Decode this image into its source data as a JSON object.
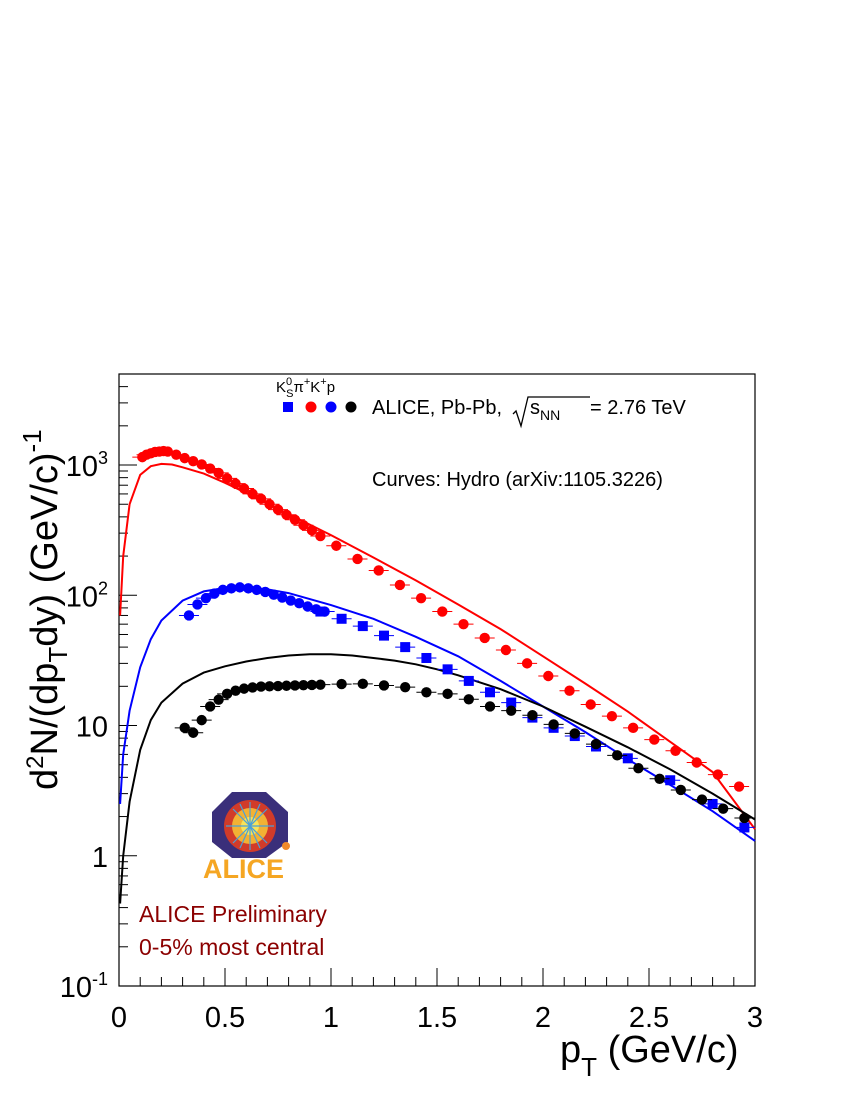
{
  "chart_data": {
    "type": "scatter",
    "xlabel_main": "p",
    "xlabel_sub": "T",
    "xlabel_unit": " (GeV/c)",
    "ylabel": {
      "d": "d",
      "sup2": "2",
      "n_open": "N/(dp",
      "sub_t": "T",
      "dy": "dy)  (GeV/c)",
      "sup_exp": "-1"
    },
    "xlim": [
      0,
      3
    ],
    "ylim": [
      0.1,
      5000
    ],
    "yscale": "log",
    "x_ticks": [
      {
        "value": 0,
        "label": "0"
      },
      {
        "value": 0.5,
        "label": "0.5"
      },
      {
        "value": 1,
        "label": "1"
      },
      {
        "value": 1.5,
        "label": "1.5"
      },
      {
        "value": 2,
        "label": "2"
      },
      {
        "value": 2.5,
        "label": "2.5"
      },
      {
        "value": 3,
        "label": "3"
      }
    ],
    "y_ticks": [
      {
        "value": 0.1,
        "base": "10",
        "exp": "-1"
      },
      {
        "value": 1,
        "base": "1",
        "exp": ""
      },
      {
        "value": 10,
        "base": "10",
        "exp": ""
      },
      {
        "value": 100,
        "base": "10",
        "exp": "2"
      },
      {
        "value": 1000,
        "base": "10",
        "exp": "3"
      }
    ],
    "legend": {
      "species_k": "K",
      "species_k_sup": "0",
      "species_k_sub": "S",
      "species_pi": "π",
      "species_pi_sup": "+",
      "species_kp": "K",
      "species_kp_sup": "+",
      "species_p": "p",
      "label_main": "ALICE, Pb-Pb,",
      "label_s": "s",
      "label_nn": "NN",
      "label_energy": " = 2.76 TeV"
    },
    "curves_note": "Curves: Hydro (arXiv:1105.3226)",
    "preliminary_line1": "ALICE Preliminary",
    "preliminary_line2": "0-5% most central",
    "logo_text": "ALICE",
    "series": [
      {
        "color": "#ff0000",
        "marker": "circle",
        "points": [
          [
            0.11,
            1150
          ],
          [
            0.13,
            1200
          ],
          [
            0.15,
            1230
          ],
          [
            0.17,
            1260
          ],
          [
            0.19,
            1270
          ],
          [
            0.21,
            1280
          ],
          [
            0.23,
            1270
          ],
          [
            0.27,
            1200
          ],
          [
            0.31,
            1130
          ],
          [
            0.35,
            1070
          ],
          [
            0.39,
            1010
          ],
          [
            0.43,
            940
          ],
          [
            0.47,
            870
          ],
          [
            0.51,
            790
          ],
          [
            0.55,
            720
          ],
          [
            0.59,
            660
          ],
          [
            0.63,
            600
          ],
          [
            0.67,
            550
          ],
          [
            0.71,
            500
          ],
          [
            0.75,
            455
          ],
          [
            0.79,
            415
          ],
          [
            0.83,
            380
          ],
          [
            0.87,
            345
          ],
          [
            0.91,
            315
          ],
          [
            0.95,
            285
          ],
          [
            1.025,
            240
          ],
          [
            1.125,
            190
          ],
          [
            1.225,
            155
          ],
          [
            1.325,
            120
          ],
          [
            1.425,
            95
          ],
          [
            1.525,
            75
          ],
          [
            1.625,
            60
          ],
          [
            1.725,
            47
          ],
          [
            1.825,
            38
          ],
          [
            1.925,
            30
          ],
          [
            2.025,
            24
          ],
          [
            2.125,
            18.5
          ],
          [
            2.225,
            14.5
          ],
          [
            2.325,
            11.8
          ],
          [
            2.425,
            9.6
          ],
          [
            2.525,
            7.8
          ],
          [
            2.625,
            6.4
          ],
          [
            2.725,
            5.2
          ],
          [
            2.825,
            4.2
          ],
          [
            2.925,
            3.4
          ]
        ]
      },
      {
        "color": "#0000ff",
        "marker": "circle",
        "points": [
          [
            0.33,
            70
          ],
          [
            0.37,
            85
          ],
          [
            0.41,
            95
          ],
          [
            0.45,
            103
          ],
          [
            0.49,
            110
          ],
          [
            0.53,
            113
          ],
          [
            0.57,
            115
          ],
          [
            0.61,
            113
          ],
          [
            0.65,
            110
          ],
          [
            0.69,
            106
          ],
          [
            0.73,
            101
          ],
          [
            0.77,
            96
          ],
          [
            0.81,
            91
          ],
          [
            0.85,
            87
          ],
          [
            0.89,
            82
          ],
          [
            0.93,
            78
          ],
          [
            0.97,
            75
          ]
        ]
      },
      {
        "color": "#0000ff",
        "marker": "square",
        "points": [
          [
            0.95,
            75
          ],
          [
            1.05,
            66
          ],
          [
            1.15,
            58
          ],
          [
            1.25,
            49
          ],
          [
            1.35,
            40
          ],
          [
            1.45,
            33
          ],
          [
            1.55,
            27
          ],
          [
            1.65,
            22
          ],
          [
            1.75,
            18
          ],
          [
            1.85,
            15
          ],
          [
            1.95,
            11.5
          ],
          [
            2.05,
            9.6
          ],
          [
            2.15,
            8.3
          ],
          [
            2.25,
            6.9
          ],
          [
            2.4,
            5.6
          ],
          [
            2.6,
            3.8
          ],
          [
            2.8,
            2.5
          ],
          [
            2.95,
            1.65
          ]
        ]
      },
      {
        "color": "#000000",
        "marker": "circle",
        "points": [
          [
            0.31,
            9.6
          ],
          [
            0.35,
            8.8
          ],
          [
            0.39,
            11.0
          ],
          [
            0.43,
            14.0
          ],
          [
            0.47,
            15.8
          ],
          [
            0.51,
            17.5
          ],
          [
            0.55,
            18.5
          ],
          [
            0.59,
            19.2
          ],
          [
            0.63,
            19.6
          ],
          [
            0.67,
            19.9
          ],
          [
            0.71,
            20.0
          ],
          [
            0.75,
            20.1
          ],
          [
            0.79,
            20.2
          ],
          [
            0.83,
            20.3
          ],
          [
            0.87,
            20.4
          ],
          [
            0.91,
            20.5
          ],
          [
            0.95,
            20.6
          ],
          [
            1.05,
            20.8
          ],
          [
            1.15,
            20.9
          ],
          [
            1.25,
            20.3
          ],
          [
            1.35,
            19.7
          ],
          [
            1.45,
            18.0
          ],
          [
            1.55,
            17.5
          ],
          [
            1.65,
            15.9
          ],
          [
            1.75,
            14.0
          ],
          [
            1.85,
            13.0
          ],
          [
            1.95,
            12.0
          ],
          [
            2.05,
            10.2
          ],
          [
            2.15,
            8.7
          ],
          [
            2.25,
            7.2
          ],
          [
            2.35,
            5.9
          ],
          [
            2.45,
            4.7
          ],
          [
            2.55,
            3.9
          ],
          [
            2.65,
            3.2
          ],
          [
            2.75,
            2.7
          ],
          [
            2.85,
            2.3
          ],
          [
            2.95,
            1.95
          ]
        ]
      }
    ],
    "hydro_curves": [
      {
        "color": "#ff0000",
        "points": [
          [
            0.005,
            70
          ],
          [
            0.02,
            200
          ],
          [
            0.05,
            500
          ],
          [
            0.1,
            840
          ],
          [
            0.15,
            980
          ],
          [
            0.2,
            1020
          ],
          [
            0.25,
            1010
          ],
          [
            0.3,
            960
          ],
          [
            0.4,
            860
          ],
          [
            0.5,
            730
          ],
          [
            0.6,
            610
          ],
          [
            0.8,
            420
          ],
          [
            1.0,
            290
          ],
          [
            1.2,
            195
          ],
          [
            1.4,
            130
          ],
          [
            1.6,
            85
          ],
          [
            1.8,
            55
          ],
          [
            2.0,
            34
          ],
          [
            2.2,
            21
          ],
          [
            2.4,
            12.8
          ],
          [
            2.6,
            7.5
          ],
          [
            2.8,
            4.4
          ],
          [
            3.0,
            1.6
          ]
        ]
      },
      {
        "color": "#0000ff",
        "points": [
          [
            0.005,
            2.5
          ],
          [
            0.02,
            6
          ],
          [
            0.05,
            13
          ],
          [
            0.1,
            28
          ],
          [
            0.15,
            46
          ],
          [
            0.2,
            64
          ],
          [
            0.3,
            91
          ],
          [
            0.4,
            107
          ],
          [
            0.5,
            114
          ],
          [
            0.6,
            115
          ],
          [
            0.7,
            111
          ],
          [
            0.8,
            104
          ],
          [
            1.0,
            84
          ],
          [
            1.2,
            66
          ],
          [
            1.4,
            48
          ],
          [
            1.6,
            34
          ],
          [
            1.8,
            22
          ],
          [
            2.0,
            14
          ],
          [
            2.2,
            8.9
          ],
          [
            2.4,
            5.5
          ],
          [
            2.6,
            3.5
          ],
          [
            2.8,
            2.2
          ],
          [
            3.0,
            1.3
          ]
        ]
      },
      {
        "color": "#000000",
        "points": [
          [
            0.005,
            0.43
          ],
          [
            0.02,
            1.0
          ],
          [
            0.05,
            2.6
          ],
          [
            0.1,
            6.5
          ],
          [
            0.15,
            11
          ],
          [
            0.2,
            15
          ],
          [
            0.3,
            21
          ],
          [
            0.4,
            25.5
          ],
          [
            0.5,
            28.5
          ],
          [
            0.6,
            31
          ],
          [
            0.7,
            33
          ],
          [
            0.8,
            34.5
          ],
          [
            0.9,
            35.3
          ],
          [
            1.0,
            35.2
          ],
          [
            1.1,
            34.5
          ],
          [
            1.2,
            33
          ],
          [
            1.3,
            31.5
          ],
          [
            1.4,
            29.5
          ],
          [
            1.5,
            27
          ],
          [
            1.6,
            24.3
          ],
          [
            1.8,
            19
          ],
          [
            2.0,
            14
          ],
          [
            2.2,
            9.8
          ],
          [
            2.4,
            6.8
          ],
          [
            2.6,
            4.6
          ],
          [
            2.8,
            3.0
          ],
          [
            3.0,
            1.9
          ]
        ]
      }
    ]
  }
}
